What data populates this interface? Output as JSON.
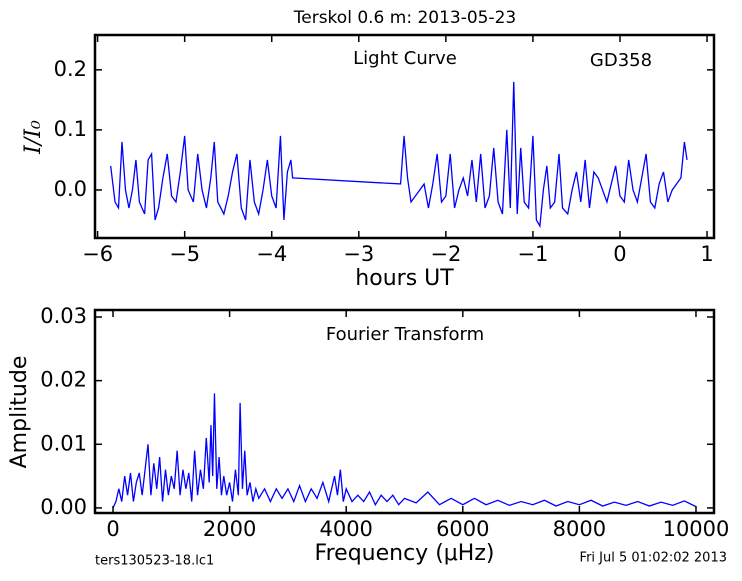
{
  "title": "Terskol 0.6 m:  2013-05-23",
  "footer_left": "ters130523-18.lc1",
  "footer_right": "Fri Jul  5 01:02:02 2013",
  "chart_data": [
    {
      "type": "line",
      "xlabel": "hours UT",
      "ylabel": "I/I₀",
      "annotations": [
        "Light Curve",
        "GD358"
      ],
      "xlim": [
        -6.03,
        1.08
      ],
      "ylim": [
        -0.08,
        0.258
      ],
      "xticks": [
        {
          "value": -6,
          "label": "−6"
        },
        {
          "value": -5,
          "label": "−5"
        },
        {
          "value": -4,
          "label": "−4"
        },
        {
          "value": -3,
          "label": "−3"
        },
        {
          "value": -2,
          "label": "−2"
        },
        {
          "value": -1,
          "label": "−1"
        },
        0,
        1
      ],
      "yticks": [
        {
          "value": 0,
          "label": "0.0"
        },
        {
          "value": 0.1,
          "label": "0.1"
        },
        {
          "value": 0.2,
          "label": "0.2"
        }
      ],
      "series": [
        {
          "color": "#0000ff",
          "x": [
            -5.85,
            -5.8,
            -5.76,
            -5.72,
            -5.68,
            -5.64,
            -5.6,
            -5.56,
            -5.52,
            -5.46,
            -5.42,
            -5.38,
            -5.34,
            -5.3,
            -5.25,
            -5.2,
            -5.15,
            -5.1,
            -5.05,
            -5.0,
            -4.96,
            -4.9,
            -4.85,
            -4.8,
            -4.75,
            -4.7,
            -4.66,
            -4.62,
            -4.55,
            -4.5,
            -4.45,
            -4.4,
            -4.35,
            -4.3,
            -4.25,
            -4.2,
            -4.15,
            -4.1,
            -4.05,
            -4.0,
            -3.95,
            -3.9,
            -3.86,
            -3.82,
            -3.78,
            -3.76,
            -2.52,
            -2.48,
            -2.44,
            -2.4,
            -2.35,
            -2.3,
            -2.25,
            -2.2,
            -2.15,
            -2.1,
            -2.05,
            -2.0,
            -1.95,
            -1.9,
            -1.85,
            -1.8,
            -1.75,
            -1.7,
            -1.65,
            -1.6,
            -1.55,
            -1.5,
            -1.45,
            -1.4,
            -1.35,
            -1.3,
            -1.26,
            -1.22,
            -1.18,
            -1.14,
            -1.1,
            -1.05,
            -1.0,
            -0.96,
            -0.92,
            -0.88,
            -0.84,
            -0.8,
            -0.75,
            -0.7,
            -0.66,
            -0.6,
            -0.55,
            -0.5,
            -0.45,
            -0.4,
            -0.35,
            -0.3,
            -0.25,
            -0.2,
            -0.15,
            -0.1,
            -0.05,
            0.0,
            0.05,
            0.1,
            0.15,
            0.2,
            0.25,
            0.3,
            0.35,
            0.4,
            0.45,
            0.5,
            0.55,
            0.6,
            0.65,
            0.7,
            0.74,
            0.77
          ],
          "values": [
            0.04,
            -0.02,
            -0.03,
            0.08,
            0.0,
            -0.03,
            0.0,
            0.05,
            -0.02,
            -0.04,
            0.05,
            0.06,
            -0.05,
            -0.03,
            0.02,
            0.06,
            -0.01,
            -0.02,
            0.03,
            0.09,
            0.0,
            -0.02,
            0.06,
            0.0,
            -0.03,
            0.02,
            0.08,
            -0.02,
            -0.04,
            -0.01,
            0.03,
            0.06,
            -0.03,
            -0.05,
            0.05,
            -0.02,
            -0.04,
            0.0,
            0.05,
            -0.01,
            -0.03,
            0.09,
            -0.05,
            0.03,
            0.05,
            0.02,
            0.01,
            0.09,
            0.02,
            -0.02,
            -0.01,
            0.0,
            0.01,
            -0.03,
            0.01,
            0.06,
            -0.02,
            -0.01,
            0.06,
            -0.03,
            0.0,
            0.02,
            -0.01,
            0.05,
            -0.02,
            0.06,
            -0.03,
            -0.01,
            0.07,
            -0.02,
            -0.04,
            0.1,
            -0.03,
            0.18,
            -0.04,
            0.07,
            -0.02,
            -0.03,
            0.09,
            -0.05,
            -0.06,
            0.0,
            0.04,
            -0.03,
            -0.02,
            0.06,
            -0.03,
            -0.04,
            0.0,
            0.03,
            -0.02,
            0.05,
            -0.03,
            0.03,
            0.02,
            0.0,
            -0.02,
            0.01,
            0.04,
            -0.01,
            -0.02,
            0.05,
            0.0,
            -0.02,
            0.02,
            0.06,
            -0.02,
            -0.03,
            0.01,
            0.03,
            -0.02,
            0.0,
            0.01,
            0.02,
            0.08,
            0.05
          ]
        }
      ]
    },
    {
      "type": "line",
      "xlabel": "Frequency (μHz)",
      "ylabel": "Amplitude",
      "annotations": [
        "Fourier Transform"
      ],
      "xlim": [
        -309,
        10309
      ],
      "ylim": [
        -0.0008,
        0.0311
      ],
      "xticks": [
        0,
        2000,
        4000,
        6000,
        8000,
        10000
      ],
      "yticks": [
        {
          "value": 0,
          "label": "0.00"
        },
        {
          "value": 0.01,
          "label": "0.01"
        },
        {
          "value": 0.02,
          "label": "0.02"
        },
        {
          "value": 0.03,
          "label": "0.03"
        }
      ],
      "series": [
        {
          "color": "#0000ff",
          "x": [
            0,
            50,
            100,
            150,
            200,
            250,
            300,
            350,
            400,
            450,
            500,
            550,
            600,
            650,
            700,
            750,
            800,
            850,
            900,
            950,
            1000,
            1050,
            1100,
            1150,
            1200,
            1250,
            1300,
            1350,
            1400,
            1450,
            1500,
            1550,
            1600,
            1650,
            1680,
            1710,
            1740,
            1780,
            1820,
            1860,
            1900,
            1950,
            2000,
            2050,
            2100,
            2150,
            2180,
            2220,
            2260,
            2300,
            2350,
            2400,
            2450,
            2500,
            2600,
            2700,
            2800,
            2900,
            3000,
            3100,
            3200,
            3300,
            3400,
            3500,
            3600,
            3700,
            3800,
            3850,
            3900,
            3950,
            4000,
            4100,
            4200,
            4300,
            4400,
            4500,
            4600,
            4700,
            4800,
            4900,
            5000,
            5200,
            5400,
            5600,
            5800,
            6000,
            6200,
            6400,
            6600,
            6800,
            7000,
            7200,
            7400,
            7600,
            7800,
            8000,
            8200,
            8400,
            8600,
            8800,
            9000,
            9200,
            9400,
            9600,
            9800,
            10000
          ],
          "values": [
            0.0,
            0.001,
            0.003,
            0.001,
            0.005,
            0.002,
            0.0055,
            0.001,
            0.004,
            0.0055,
            0.002,
            0.006,
            0.01,
            0.002,
            0.007,
            0.003,
            0.008,
            0.001,
            0.006,
            0.002,
            0.005,
            0.003,
            0.009,
            0.002,
            0.006,
            0.003,
            0.0055,
            0.001,
            0.009,
            0.002,
            0.006,
            0.003,
            0.011,
            0.004,
            0.013,
            0.005,
            0.018,
            0.003,
            0.008,
            0.002,
            0.005,
            0.002,
            0.004,
            0.001,
            0.006,
            0.002,
            0.0165,
            0.003,
            0.009,
            0.002,
            0.004,
            0.001,
            0.003,
            0.0015,
            0.003,
            0.001,
            0.003,
            0.0015,
            0.003,
            0.001,
            0.0035,
            0.001,
            0.003,
            0.0015,
            0.004,
            0.001,
            0.005,
            0.002,
            0.006,
            0.001,
            0.003,
            0.001,
            0.002,
            0.001,
            0.0025,
            0.0005,
            0.002,
            0.001,
            0.002,
            0.0005,
            0.0015,
            0.0008,
            0.0025,
            0.0005,
            0.0015,
            0.0005,
            0.0015,
            0.0005,
            0.0012,
            0.0004,
            0.001,
            0.0005,
            0.0012,
            0.0003,
            0.001,
            0.0005,
            0.0012,
            0.0003,
            0.0009,
            0.0004,
            0.001,
            0.0003,
            0.0009,
            0.0004,
            0.0011,
            0.0002
          ]
        }
      ]
    }
  ]
}
